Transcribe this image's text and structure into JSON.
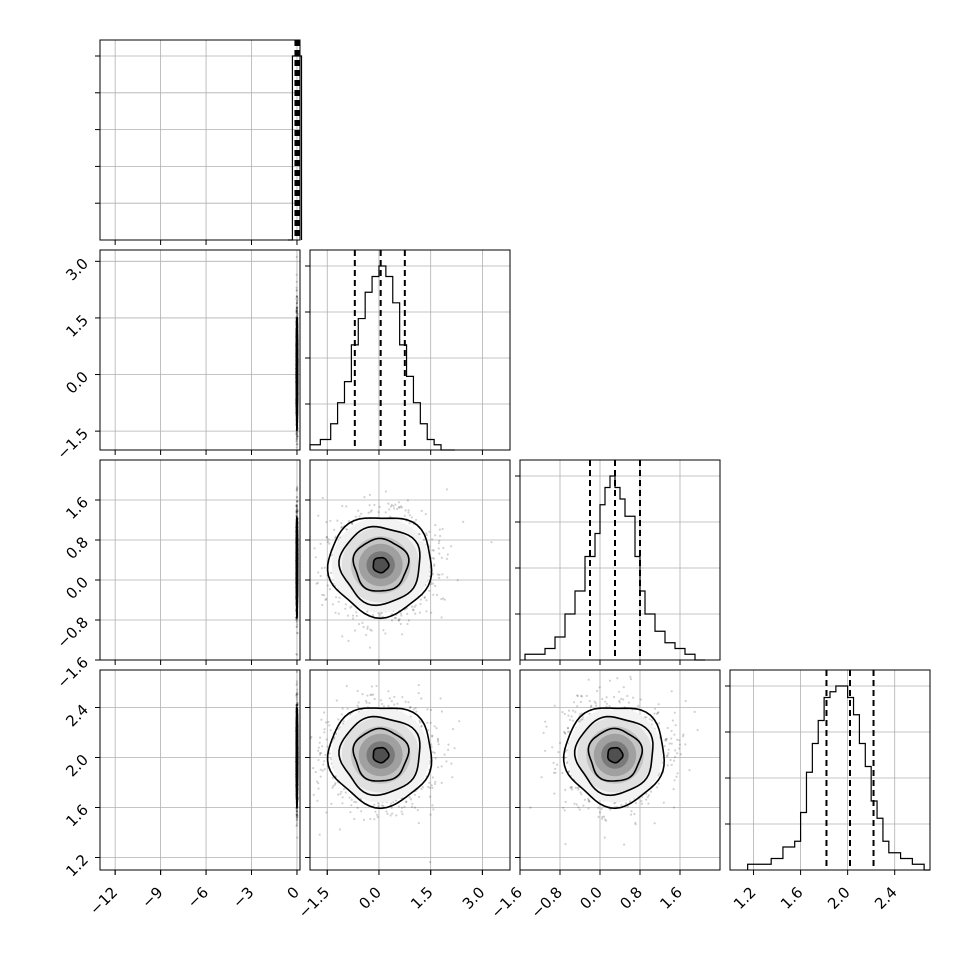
{
  "chart_data": [
    {
      "type": "histogram",
      "panel": "diag-0",
      "xlim": [
        -13.0,
        0.2
      ],
      "bins_x": [
        -0.6,
        -0.3,
        0.0,
        0.3
      ],
      "counts": [
        0,
        17,
        17,
        0
      ],
      "quantiles": [
        -0.1,
        0.0,
        0.1
      ],
      "xticks": [
        -12,
        -9,
        -6,
        -3,
        0
      ],
      "xticklabels": [
        "−12",
        "−9",
        "−6",
        "−3",
        "0"
      ],
      "yticks_count": 5
    },
    {
      "type": "histogram",
      "panel": "diag-1",
      "xlim": [
        -2.0,
        3.8
      ],
      "bins_x": [
        -2.0,
        -1.7,
        -1.4,
        -1.2,
        -1.0,
        -0.8,
        -0.6,
        -0.4,
        -0.2,
        0.0,
        0.2,
        0.4,
        0.6,
        0.8,
        1.0,
        1.2,
        1.4,
        1.6,
        1.8,
        2.2
      ],
      "counts": [
        1,
        2,
        5,
        9,
        13,
        20,
        25,
        30,
        33,
        35,
        33,
        28,
        20,
        14,
        9,
        5,
        2,
        1,
        0
      ],
      "quantiles": [
        -0.7,
        0.05,
        0.75
      ],
      "xticks": [
        -1.5,
        0.0,
        1.5,
        3.0
      ],
      "xticklabels": [
        "−1.5",
        "0.0",
        "1.5",
        "3.0"
      ]
    },
    {
      "type": "histogram",
      "panel": "diag-2",
      "xlim": [
        -1.6,
        2.4
      ],
      "bins_x": [
        -1.5,
        -1.3,
        -1.1,
        -0.9,
        -0.7,
        -0.5,
        -0.3,
        -0.1,
        0.0,
        0.1,
        0.2,
        0.3,
        0.4,
        0.5,
        0.7,
        0.8,
        0.9,
        1.1,
        1.3,
        1.5,
        1.7,
        1.9,
        2.1
      ],
      "counts": [
        1,
        1,
        2,
        4,
        8,
        12,
        18,
        22,
        27,
        30,
        32,
        30,
        28,
        25,
        18,
        12,
        8,
        5,
        3,
        2,
        1,
        0
      ],
      "quantiles": [
        -0.2,
        0.3,
        0.8
      ],
      "xticks": [
        -1.6,
        -0.8,
        0.0,
        0.8,
        1.6
      ],
      "xticklabels": [
        "−1.6",
        "−0.8",
        "0.0",
        "0.8",
        "1.6"
      ]
    },
    {
      "type": "histogram",
      "panel": "diag-3",
      "xlim": [
        1.0,
        2.7
      ],
      "bins_x": [
        1.15,
        1.25,
        1.35,
        1.45,
        1.55,
        1.6,
        1.65,
        1.7,
        1.75,
        1.8,
        1.85,
        1.9,
        1.95,
        2.0,
        2.05,
        2.1,
        2.15,
        2.2,
        2.25,
        2.3,
        2.35,
        2.45,
        2.55,
        2.65,
        2.7
      ],
      "counts": [
        1,
        1,
        2,
        4,
        5,
        10,
        17,
        22,
        26,
        30,
        31,
        32,
        32,
        30,
        27,
        22,
        18,
        12,
        9,
        5,
        3,
        2,
        1,
        0
      ],
      "quantiles": [
        1.82,
        2.02,
        2.22
      ],
      "xticks": [
        1.2,
        1.6,
        2.0,
        2.4
      ],
      "xticklabels": [
        "1.2",
        "1.6",
        "2.0",
        "2.4"
      ]
    },
    {
      "type": "scatter",
      "panel": "2d-1-0",
      "x_center": 0.0,
      "y_center": 0.1,
      "x_sd": 0.02,
      "y_sd": 0.75,
      "xlim": [
        -13.0,
        0.2
      ],
      "ylim": [
        -2.0,
        3.3
      ],
      "yticks": [
        -1.5,
        0.0,
        1.5,
        3.0
      ],
      "yticklabels": [
        "−1.5",
        "0.0",
        "1.5",
        "3.0"
      ]
    },
    {
      "type": "scatter",
      "panel": "2d-2-0",
      "x_center": 0.0,
      "y_center": 0.3,
      "x_sd": 0.02,
      "y_sd": 0.5,
      "xlim": [
        -13.0,
        0.2
      ],
      "ylim": [
        -1.6,
        2.4
      ],
      "yticks": [
        -1.6,
        -0.8,
        0.0,
        0.8,
        1.6
      ],
      "yticklabels": [
        "−1.6",
        "−0.8",
        "0.0",
        "0.8",
        "1.6"
      ]
    },
    {
      "type": "scatter",
      "panel": "2d-2-1",
      "x_center": 0.05,
      "y_center": 0.3,
      "x_sd": 0.75,
      "y_sd": 0.5,
      "xlim": [
        -2.0,
        3.8
      ],
      "ylim": [
        -1.6,
        2.4
      ]
    },
    {
      "type": "scatter",
      "panel": "2d-3-0",
      "x_center": 0.0,
      "y_center": 2.02,
      "x_sd": 0.02,
      "y_sd": 0.2,
      "xlim": [
        -13.0,
        0.2
      ],
      "ylim": [
        1.1,
        2.7
      ],
      "yticks": [
        1.2,
        1.6,
        2.0,
        2.4
      ],
      "yticklabels": [
        "1.2",
        "1.6",
        "2.0",
        "2.4"
      ]
    },
    {
      "type": "scatter",
      "panel": "2d-3-1",
      "x_center": 0.05,
      "y_center": 2.02,
      "x_sd": 0.75,
      "y_sd": 0.2,
      "xlim": [
        -2.0,
        3.8
      ],
      "ylim": [
        1.1,
        2.7
      ]
    },
    {
      "type": "scatter",
      "panel": "2d-3-2",
      "x_center": 0.3,
      "y_center": 2.02,
      "x_sd": 0.5,
      "y_sd": 0.2,
      "xlim": [
        -1.6,
        2.4
      ],
      "ylim": [
        1.1,
        2.7
      ]
    }
  ]
}
